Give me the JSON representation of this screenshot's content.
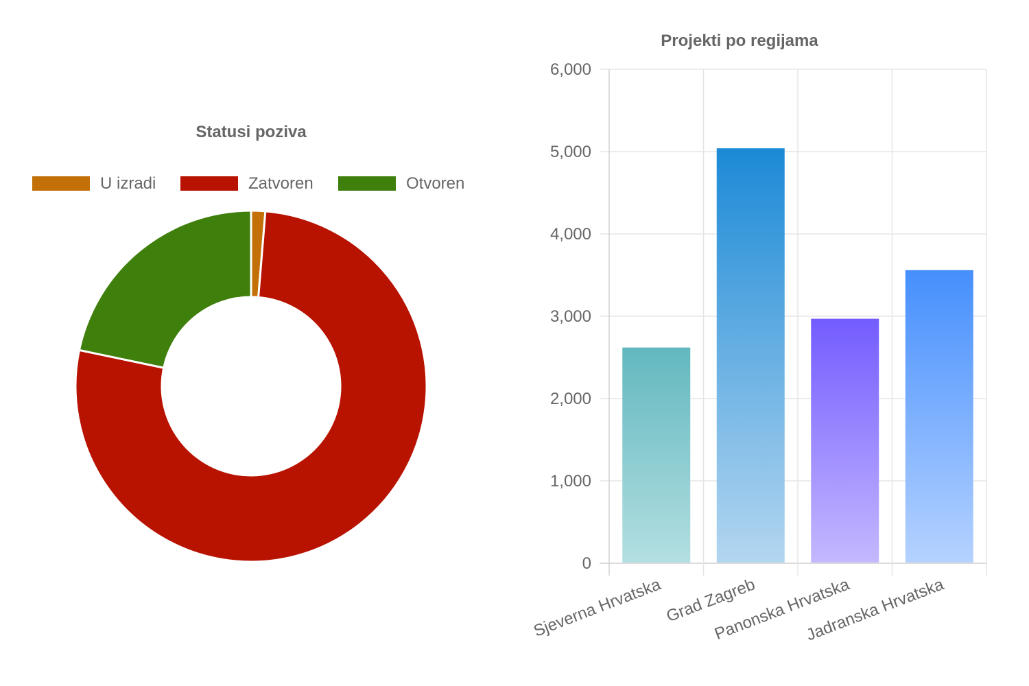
{
  "chart_data": [
    {
      "type": "doughnut",
      "title": "Statusi poziva",
      "legend_position": "top",
      "categories": [
        "U izradi",
        "Zatvoren",
        "Otvoren"
      ],
      "values": [
        1.3,
        77.0,
        21.7
      ],
      "colors": [
        "#c27007",
        "#b81200",
        "#3f7f0c"
      ]
    },
    {
      "type": "bar",
      "title": "Projekti po regijama",
      "categories": [
        "Sjeverna Hrvatska",
        "Grad Zagreb",
        "Panonska Hrvatska",
        "Jadranska Hrvatska"
      ],
      "values": [
        2620,
        5040,
        2970,
        3560
      ],
      "ylim": [
        0,
        6000
      ],
      "yticks": [
        0,
        1000,
        2000,
        3000,
        4000,
        5000,
        6000
      ],
      "ytick_labels": [
        "0",
        "1,000",
        "2,000",
        "3,000",
        "4,000",
        "5,000",
        "6,000"
      ],
      "grid": true,
      "legend": "none",
      "colors": [
        {
          "top": "#62b8bf",
          "bottom": "#b3dfe1"
        },
        {
          "top": "#1c8ad6",
          "bottom": "#b3d6f0"
        },
        {
          "top": "#735cff",
          "bottom": "#c4b8ff"
        },
        {
          "top": "#468ffd",
          "bottom": "#b5d2ff"
        }
      ]
    }
  ]
}
